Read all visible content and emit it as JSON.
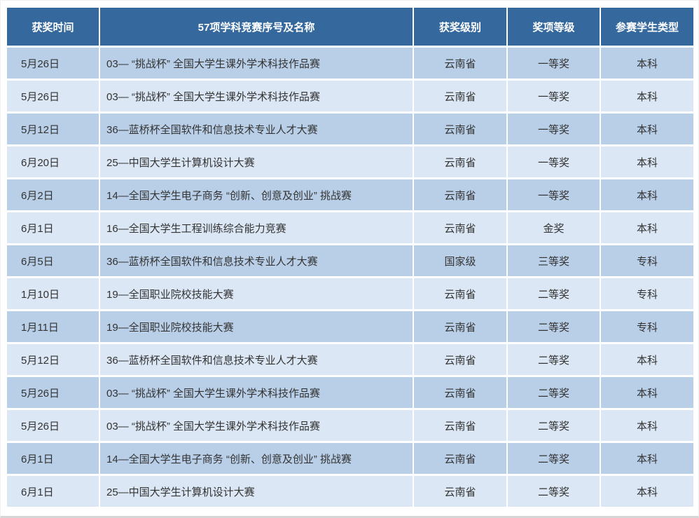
{
  "colors": {
    "header_bg": "#35689d",
    "header_text": "#ffffff",
    "row_odd_bg": "#b9cfe8",
    "row_even_bg": "#dbe7f4",
    "body_text": "#333333"
  },
  "chart_data": {
    "type": "table",
    "title": "",
    "columns": [
      "获奖时间",
      "57项学科竞赛序号及名称",
      "获奖级别",
      "奖项等级",
      "参赛学生类型"
    ],
    "rows": [
      [
        "5月26日",
        "03— “挑战杯” 全国大学生课外学术科技作品赛",
        "云南省",
        "一等奖",
        "本科"
      ],
      [
        "5月26日",
        "03— “挑战杯” 全国大学生课外学术科技作品赛",
        "云南省",
        "一等奖",
        "本科"
      ],
      [
        "5月12日",
        "36—蓝桥杯全国软件和信息技术专业人才大赛",
        "云南省",
        "一等奖",
        "本科"
      ],
      [
        "6月20日",
        "25—中国大学生计算机设计大赛",
        "云南省",
        "一等奖",
        "本科"
      ],
      [
        "6月2日",
        "14—全国大学生电子商务 “创新、创意及创业” 挑战赛",
        "云南省",
        "一等奖",
        "本科"
      ],
      [
        "6月1日",
        "16—全国大学生工程训练综合能力竞赛",
        "云南省",
        "金奖",
        "本科"
      ],
      [
        "6月5日",
        "36—蓝桥杯全国软件和信息技术专业人才大赛",
        "国家级",
        "三等奖",
        "专科"
      ],
      [
        "1月10日",
        "19—全国职业院校技能大赛",
        "云南省",
        "二等奖",
        "专科"
      ],
      [
        "1月11日",
        "19—全国职业院校技能大赛",
        "云南省",
        "二等奖",
        "专科"
      ],
      [
        "5月12日",
        "36—蓝桥杯全国软件和信息技术专业人才大赛",
        "云南省",
        "二等奖",
        "本科"
      ],
      [
        "5月26日",
        "03— “挑战杯” 全国大学生课外学术科技作品赛",
        "云南省",
        "二等奖",
        "本科"
      ],
      [
        "5月26日",
        "03— “挑战杯” 全国大学生课外学术科技作品赛",
        "云南省",
        "二等奖",
        "本科"
      ],
      [
        "6月1日",
        "14—全国大学生电子商务 “创新、创意及创业” 挑战赛",
        "云南省",
        "二等奖",
        "本科"
      ],
      [
        "6月1日",
        "25—中国大学生计算机设计大赛",
        "云南省",
        "二等奖",
        "本科"
      ]
    ]
  }
}
